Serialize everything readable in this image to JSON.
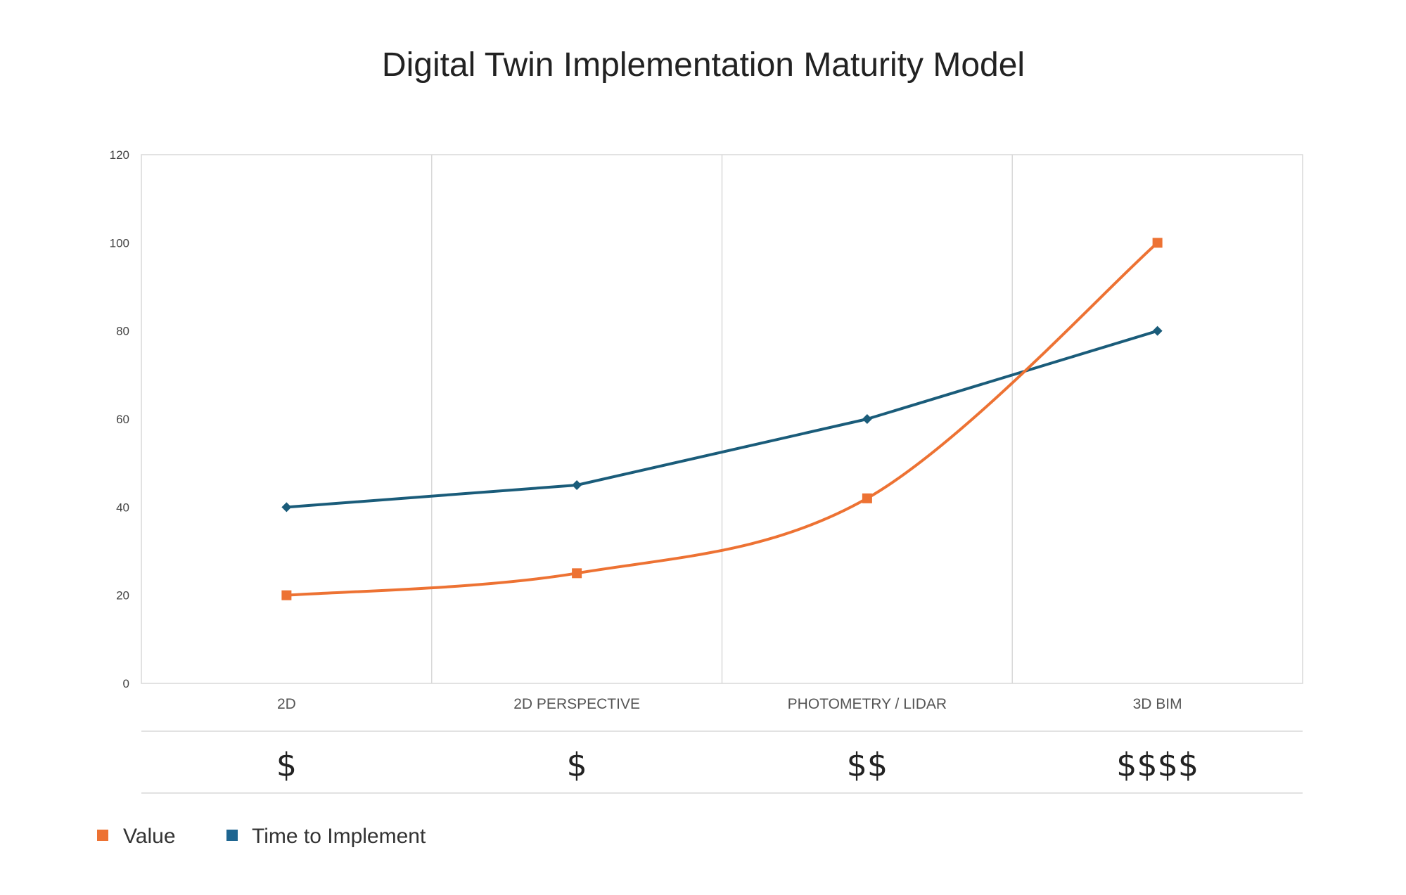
{
  "chart_data": {
    "type": "line",
    "title": "Digital Twin Implementation Maturity Model",
    "xlabel": "",
    "ylabel": "",
    "categories": [
      "2D",
      "2D PERSPECTIVE",
      "PHOTOMETRY / LIDAR",
      "3D BIM"
    ],
    "cost_labels": [
      "$",
      "$",
      "$$",
      "$$$$"
    ],
    "ylim": [
      0,
      120
    ],
    "yticks": [
      0,
      20,
      40,
      60,
      80,
      100,
      120
    ],
    "grid": "vertical",
    "legend_position": "bottom-left",
    "series": [
      {
        "name": "Value",
        "values": [
          20,
          25,
          42,
          100
        ],
        "color": "#ed7233",
        "marker": "square",
        "smooth": true
      },
      {
        "name": "Time to Implement",
        "values": [
          40,
          45,
          60,
          80
        ],
        "color": "#1a5c7a",
        "legend_color": "#1e6590",
        "marker": "diamond",
        "smooth": false
      }
    ]
  }
}
